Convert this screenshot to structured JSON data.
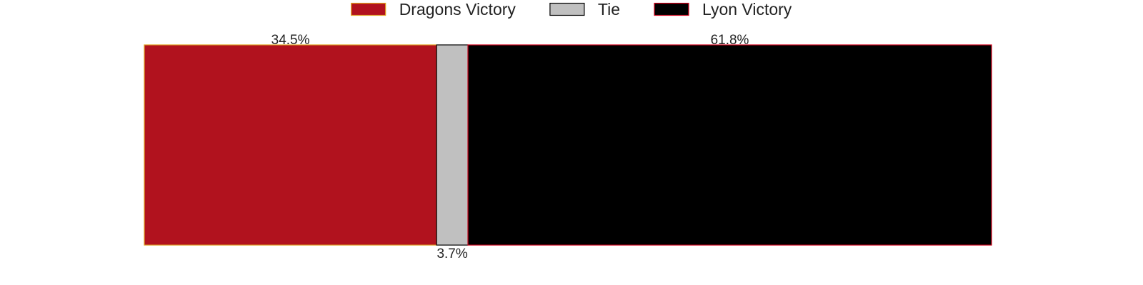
{
  "chart_data": {
    "type": "bar",
    "orientation": "horizontal",
    "stacked": true,
    "normalized_percent": true,
    "series": [
      {
        "name": "Dragons Victory",
        "value": 34.5,
        "label": "34.5%",
        "color": "#b1121e",
        "edge_color": "#e0a020"
      },
      {
        "name": "Tie",
        "value": 3.7,
        "label": "3.7%",
        "color": "#c0c0c0",
        "edge_color": "#000000"
      },
      {
        "name": "Lyon Victory",
        "value": 61.8,
        "label": "61.8%",
        "color": "#000000",
        "edge_color": "#d0021b"
      }
    ],
    "xlim": [
      0,
      100
    ],
    "grid": false,
    "axes_visible": false,
    "legend_position": "top-center"
  }
}
